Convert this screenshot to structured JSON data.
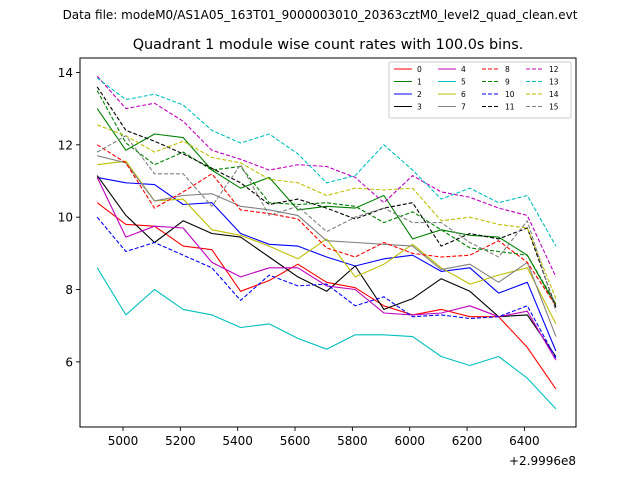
{
  "suptitle": "Data file: modeM0/AS1A05_163T01_9000003010_20363cztM0_level2_quad_clean.evt",
  "chart_data": {
    "type": "line",
    "title": "Quadrant 1 module wise count rates with 100.0s bins.",
    "xlabel": "",
    "ylabel": "",
    "x_offset_label": "+2.9996e8",
    "x_offset": 299960000,
    "xlim": [
      4850,
      6580
    ],
    "ylim": [
      4.2,
      14.4
    ],
    "xticks": [
      5000,
      5200,
      5400,
      5600,
      5800,
      6000,
      6200,
      6400
    ],
    "yticks": [
      6,
      8,
      10,
      12,
      14
    ],
    "grid": false,
    "legend_position": "top-right",
    "x": [
      4910,
      5010,
      5110,
      5210,
      5310,
      5410,
      5510,
      5610,
      5710,
      5810,
      5910,
      6010,
      6110,
      6210,
      6310,
      6410,
      6510
    ],
    "series": [
      {
        "name": "0",
        "color": "#ff0000",
        "style": "solid",
        "values": [
          10.4,
          9.8,
          9.75,
          9.2,
          9.1,
          7.95,
          8.25,
          8.7,
          8.2,
          8.05,
          7.55,
          7.3,
          7.45,
          7.25,
          7.25,
          6.4,
          5.25
        ]
      },
      {
        "name": "1",
        "color": "#008000",
        "style": "solid",
        "values": [
          13.0,
          11.85,
          12.3,
          12.2,
          11.3,
          10.8,
          11.1,
          10.2,
          10.3,
          10.25,
          10.6,
          9.4,
          9.65,
          9.5,
          9.45,
          8.95,
          7.55
        ]
      },
      {
        "name": "2",
        "color": "#0000ff",
        "style": "solid",
        "values": [
          11.1,
          10.95,
          10.9,
          10.35,
          10.4,
          9.55,
          9.25,
          9.2,
          8.9,
          8.65,
          8.85,
          8.95,
          8.5,
          8.6,
          7.9,
          8.2,
          6.3
        ]
      },
      {
        "name": "3",
        "color": "#000000",
        "style": "solid",
        "values": [
          11.15,
          10.05,
          9.3,
          9.9,
          9.55,
          9.45,
          8.9,
          8.35,
          7.95,
          8.65,
          7.45,
          7.75,
          8.3,
          7.95,
          7.25,
          7.3,
          6.15
        ]
      },
      {
        "name": "4",
        "color": "#bf00bf",
        "style": "solid",
        "values": [
          11.1,
          9.45,
          9.75,
          9.7,
          8.75,
          8.35,
          8.6,
          8.6,
          8.1,
          8.0,
          7.35,
          7.3,
          7.35,
          7.55,
          7.25,
          7.4,
          6.05
        ]
      },
      {
        "name": "5",
        "color": "#00bfbf",
        "style": "solid",
        "values": [
          8.6,
          7.3,
          8.0,
          7.45,
          7.3,
          6.95,
          7.05,
          6.65,
          6.35,
          6.75,
          6.75,
          6.7,
          6.15,
          5.9,
          6.15,
          5.55,
          4.7
        ]
      },
      {
        "name": "6",
        "color": "#bfbf00",
        "style": "solid",
        "values": [
          11.45,
          11.55,
          10.45,
          10.5,
          9.65,
          9.5,
          9.2,
          8.85,
          9.4,
          8.35,
          8.7,
          9.25,
          8.6,
          8.15,
          8.4,
          8.6,
          7.05
        ]
      },
      {
        "name": "7",
        "color": "#808080",
        "style": "solid",
        "values": [
          11.7,
          11.5,
          10.45,
          10.6,
          10.65,
          10.3,
          10.2,
          10.05,
          9.35,
          9.3,
          9.25,
          9.2,
          8.55,
          8.7,
          8.2,
          8.75,
          6.7
        ]
      },
      {
        "name": "8",
        "color": "#ff0000",
        "style": "dashed",
        "values": [
          12.0,
          11.5,
          10.25,
          10.7,
          11.2,
          10.2,
          10.1,
          9.95,
          9.15,
          8.9,
          9.3,
          9.0,
          8.9,
          8.95,
          9.35,
          8.75,
          7.55
        ]
      },
      {
        "name": "9",
        "color": "#008000",
        "style": "dashed",
        "values": [
          13.5,
          12.05,
          11.45,
          11.8,
          11.3,
          11.4,
          10.4,
          10.35,
          10.4,
          10.3,
          9.85,
          10.15,
          9.65,
          9.15,
          9.05,
          8.95,
          7.6
        ]
      },
      {
        "name": "10",
        "color": "#0000ff",
        "style": "dashed",
        "values": [
          10.0,
          9.05,
          9.3,
          8.95,
          8.6,
          7.7,
          8.4,
          8.1,
          8.15,
          7.55,
          7.8,
          7.25,
          7.3,
          7.2,
          7.25,
          7.55,
          6.1
        ]
      },
      {
        "name": "11",
        "color": "#000000",
        "style": "dashed",
        "values": [
          13.6,
          12.4,
          12.1,
          11.75,
          11.35,
          10.95,
          10.35,
          10.5,
          10.25,
          9.95,
          10.25,
          10.4,
          9.2,
          9.55,
          9.4,
          9.7,
          7.5
        ]
      },
      {
        "name": "12",
        "color": "#bf00bf",
        "style": "dashed",
        "values": [
          13.9,
          13.0,
          13.15,
          12.65,
          11.85,
          11.6,
          11.3,
          11.45,
          11.4,
          11.1,
          10.4,
          11.15,
          10.7,
          10.55,
          10.25,
          10.05,
          8.35
        ]
      },
      {
        "name": "13",
        "color": "#00bfbf",
        "style": "dashed",
        "values": [
          13.85,
          13.25,
          13.4,
          13.1,
          12.4,
          12.05,
          12.3,
          11.75,
          10.95,
          11.15,
          12.0,
          11.3,
          10.5,
          10.8,
          10.4,
          10.6,
          9.2
        ]
      },
      {
        "name": "14",
        "color": "#bfbf00",
        "style": "dashed",
        "values": [
          12.55,
          12.25,
          11.8,
          12.1,
          11.65,
          11.5,
          11.05,
          10.95,
          10.6,
          10.8,
          10.75,
          10.8,
          9.9,
          10.0,
          9.8,
          9.7,
          7.75
        ]
      },
      {
        "name": "15",
        "color": "#808080",
        "style": "dashed",
        "values": [
          11.8,
          12.25,
          11.2,
          11.2,
          10.3,
          11.45,
          10.05,
          10.3,
          9.6,
          10.0,
          10.25,
          9.85,
          9.85,
          9.3,
          8.9,
          9.9,
          7.4
        ]
      }
    ]
  }
}
